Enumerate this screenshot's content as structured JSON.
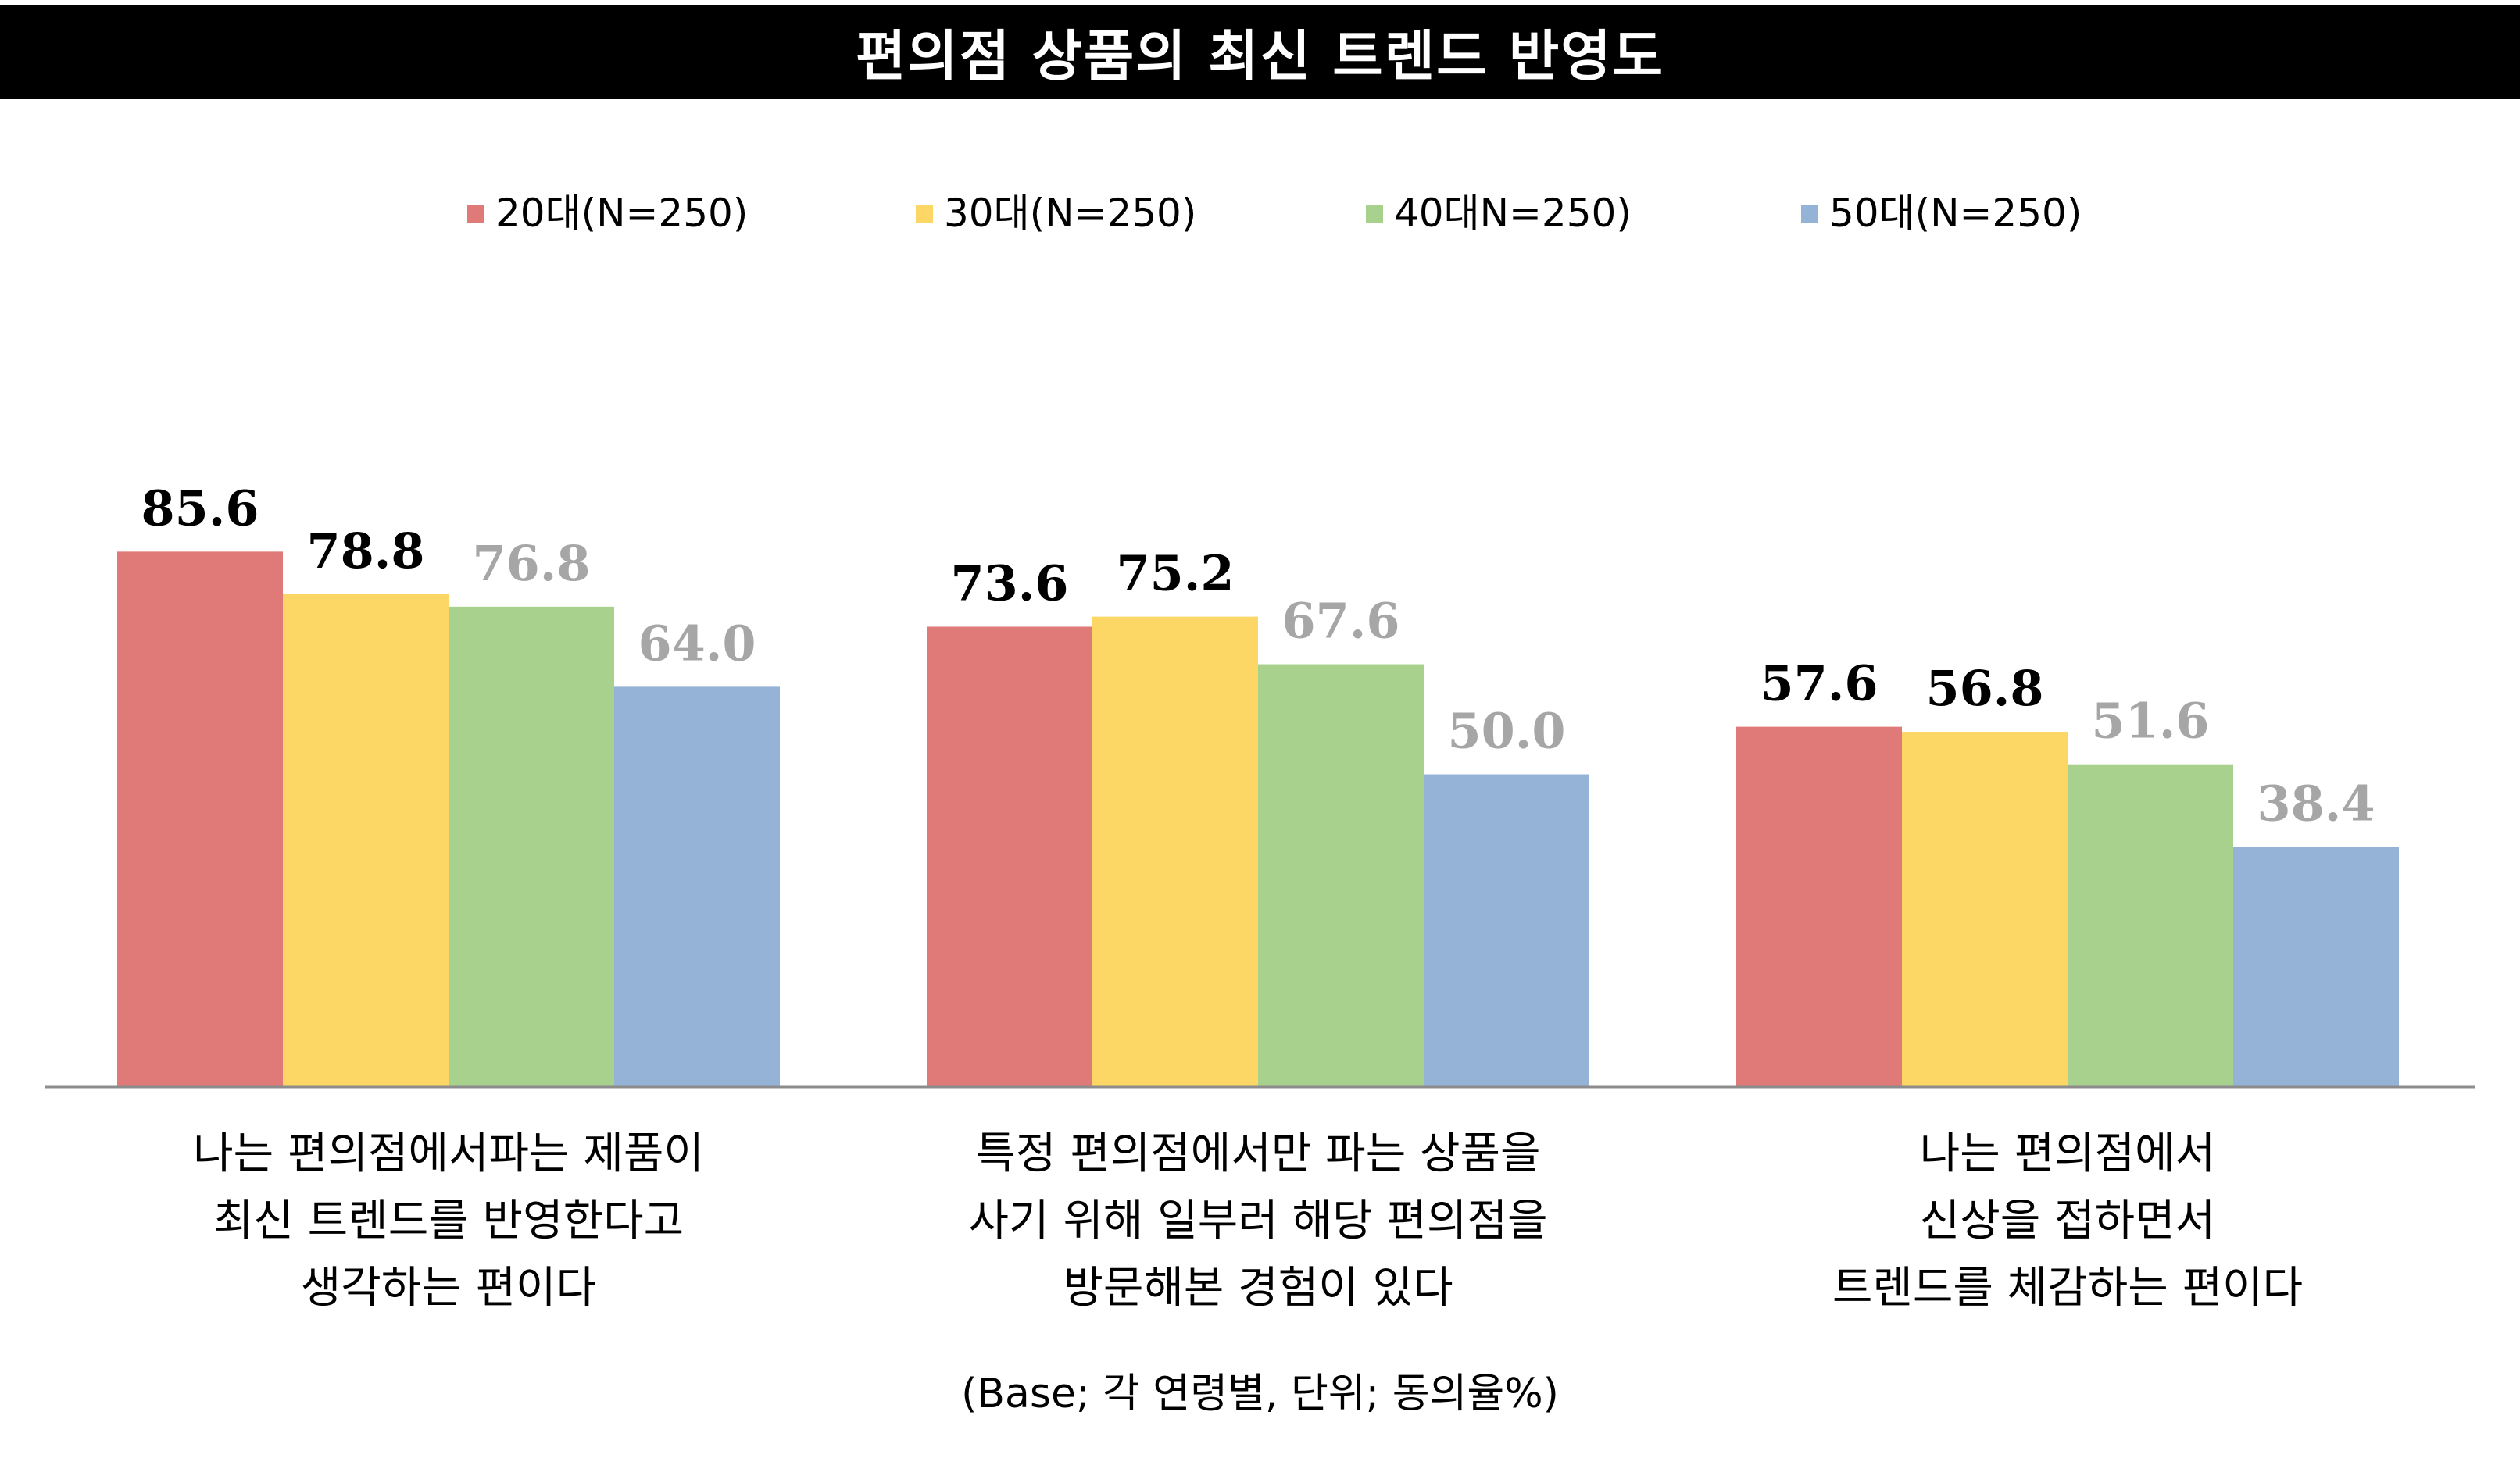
{
  "chart_data": {
    "type": "bar",
    "title": "편의점 상품의 최신 트렌드 반영도",
    "categories": [
      [
        "나는 편의점에서파는 제품이",
        "최신 트렌드를 반영한다고",
        "생각하는 편이다"
      ],
      [
        "특정 편의점에서만 파는 상품을",
        "사기 위해 일부러 해당 편의점을",
        "방문해본 경험이 있다"
      ],
      [
        "나는 편의점에서",
        "신상을 접하면서",
        "트렌드를 체감하는 편이다"
      ]
    ],
    "series": [
      {
        "name": "20대(N=250)",
        "color": "#E07A78",
        "label_color": "#000000",
        "values": [
          85.6,
          73.6,
          57.6
        ]
      },
      {
        "name": "30대(N=250)",
        "color": "#FDD765",
        "label_color": "#000000",
        "values": [
          78.8,
          75.2,
          56.8
        ]
      },
      {
        "name": "40대N=250)",
        "color": "#A9D18E",
        "label_color": "#A6A6A6",
        "values": [
          76.8,
          67.6,
          51.6
        ]
      },
      {
        "name": "50대(N=250)",
        "color": "#95B3D7",
        "label_color": "#A6A6A6",
        "values": [
          64.0,
          50.0,
          38.4
        ]
      }
    ],
    "value_format": "1 decimal",
    "ylim": [
      0,
      100
    ],
    "grid": false,
    "legend_position": "top-center",
    "footnote": "(Base; 각 연령별, 단위; 동의율%)"
  }
}
